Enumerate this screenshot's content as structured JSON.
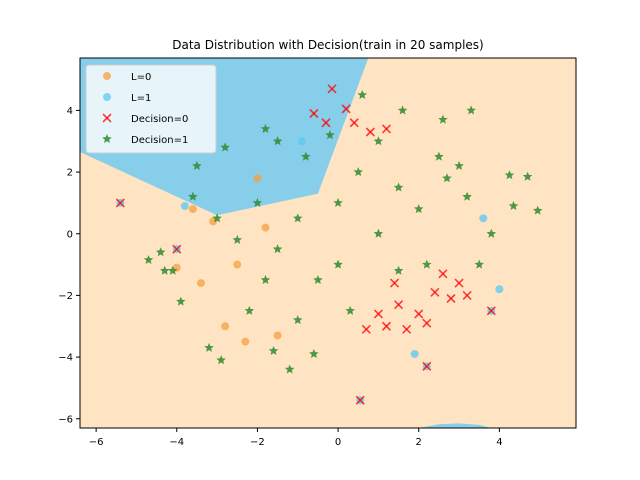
{
  "chart_data": {
    "type": "scatter",
    "title": "Data Distribution with Decision(train in 20 samples)",
    "xlabel": "",
    "ylabel": "",
    "xlim": [
      -6.4,
      5.9
    ],
    "ylim": [
      -6.3,
      5.7
    ],
    "xticks": [
      -6,
      -4,
      -2,
      0,
      2,
      4
    ],
    "yticks": [
      -6,
      -4,
      -2,
      0,
      2,
      4
    ],
    "grid": false,
    "legend_position": "top-left",
    "background_regions": [
      {
        "label": "decision region 0",
        "color": "#ffe4c4"
      },
      {
        "label": "decision region 1",
        "color": "#87ceeb"
      }
    ],
    "decision_boundary_points": [
      [
        -6.4,
        2.65
      ],
      [
        -3.0,
        0.6
      ],
      [
        -0.5,
        1.3
      ],
      [
        0.75,
        5.7
      ]
    ],
    "region1_bottom_points": [
      [
        2.0,
        -6.3
      ],
      [
        2.5,
        -6.18
      ],
      [
        3.0,
        -6.15
      ],
      [
        3.5,
        -6.2
      ],
      [
        3.8,
        -6.3
      ]
    ],
    "series": [
      {
        "name": "L=0",
        "marker": "circle",
        "color": "#f5a040",
        "points": [
          [
            -1.8,
            0.2
          ],
          [
            -2.5,
            -1.0
          ],
          [
            -3.1,
            0.4
          ],
          [
            -2.8,
            -3.0
          ],
          [
            -1.5,
            -3.3
          ],
          [
            -3.4,
            -1.6
          ],
          [
            -2.0,
            1.8
          ],
          [
            -4.0,
            -1.1
          ],
          [
            -3.6,
            0.8
          ],
          [
            -2.3,
            -3.5
          ]
        ]
      },
      {
        "name": "L=1",
        "marker": "circle",
        "color": "#5bc8f0",
        "points": [
          [
            -5.4,
            1.0
          ],
          [
            -4.0,
            -0.5
          ],
          [
            -3.8,
            0.9
          ],
          [
            0.55,
            -5.4
          ],
          [
            3.8,
            -2.5
          ],
          [
            4.0,
            -1.8
          ],
          [
            3.6,
            0.5
          ],
          [
            2.2,
            -4.3
          ],
          [
            1.9,
            -3.9
          ],
          [
            -0.9,
            3.0
          ]
        ]
      },
      {
        "name": "Decision=0",
        "marker": "x",
        "color": "#ff0000",
        "points": [
          [
            -0.15,
            4.7
          ],
          [
            0.2,
            4.05
          ],
          [
            0.4,
            3.6
          ],
          [
            0.8,
            3.3
          ],
          [
            1.2,
            3.4
          ],
          [
            -0.6,
            3.9
          ],
          [
            -0.3,
            3.6
          ],
          [
            1.5,
            -2.3
          ],
          [
            2.0,
            -2.6
          ],
          [
            2.4,
            -1.9
          ],
          [
            2.8,
            -2.1
          ],
          [
            1.2,
            -3.0
          ],
          [
            1.7,
            -3.1
          ],
          [
            2.2,
            -2.9
          ],
          [
            3.0,
            -1.6
          ],
          [
            1.0,
            -2.6
          ],
          [
            0.7,
            -3.1
          ],
          [
            2.6,
            -1.3
          ],
          [
            3.2,
            -2.0
          ],
          [
            1.4,
            -1.6
          ],
          [
            -5.4,
            1.0
          ],
          [
            0.55,
            -5.4
          ],
          [
            3.8,
            -2.5
          ],
          [
            2.2,
            -4.3
          ],
          [
            -4.0,
            -0.5
          ]
        ]
      },
      {
        "name": "Decision=1",
        "marker": "star",
        "color": "#2e8b2e",
        "points": [
          [
            -1.0,
            0.5
          ],
          [
            0.0,
            1.0
          ],
          [
            1.0,
            0.0
          ],
          [
            -1.5,
            -0.5
          ],
          [
            -0.5,
            -1.5
          ],
          [
            0.5,
            2.0
          ],
          [
            1.5,
            1.5
          ],
          [
            -2.0,
            1.0
          ],
          [
            -2.5,
            -0.2
          ],
          [
            -0.2,
            3.2
          ],
          [
            2.5,
            2.5
          ],
          [
            3.2,
            1.2
          ],
          [
            3.8,
            0.0
          ],
          [
            4.7,
            1.85
          ],
          [
            4.95,
            0.75
          ],
          [
            4.35,
            0.9
          ],
          [
            3.3,
            4.0
          ],
          [
            4.25,
            1.9
          ],
          [
            -4.7,
            -0.85
          ],
          [
            -4.4,
            -0.6
          ],
          [
            -4.1,
            -1.2
          ],
          [
            -3.9,
            -2.2
          ],
          [
            -3.2,
            -3.7
          ],
          [
            -2.9,
            -4.1
          ],
          [
            -1.6,
            -3.8
          ],
          [
            -1.2,
            -4.4
          ],
          [
            -0.6,
            -3.9
          ],
          [
            -4.3,
            -1.2
          ],
          [
            -3.5,
            2.2
          ],
          [
            -2.8,
            2.8
          ],
          [
            -1.8,
            3.4
          ],
          [
            -1.5,
            3.0
          ],
          [
            0.6,
            4.5
          ],
          [
            1.6,
            4.0
          ],
          [
            2.6,
            3.7
          ],
          [
            3.0,
            2.2
          ],
          [
            2.2,
            -1.0
          ],
          [
            1.5,
            -1.2
          ],
          [
            -3.0,
            0.5
          ],
          [
            -2.2,
            -2.5
          ],
          [
            -1.0,
            -2.8
          ],
          [
            0.3,
            -2.5
          ],
          [
            1.0,
            3.0
          ],
          [
            -0.8,
            2.5
          ],
          [
            2.0,
            0.8
          ],
          [
            3.5,
            -1.0
          ],
          [
            -3.6,
            1.2
          ],
          [
            0.0,
            -1.0
          ],
          [
            -1.8,
            -1.5
          ],
          [
            2.7,
            1.8
          ]
        ]
      }
    ]
  }
}
